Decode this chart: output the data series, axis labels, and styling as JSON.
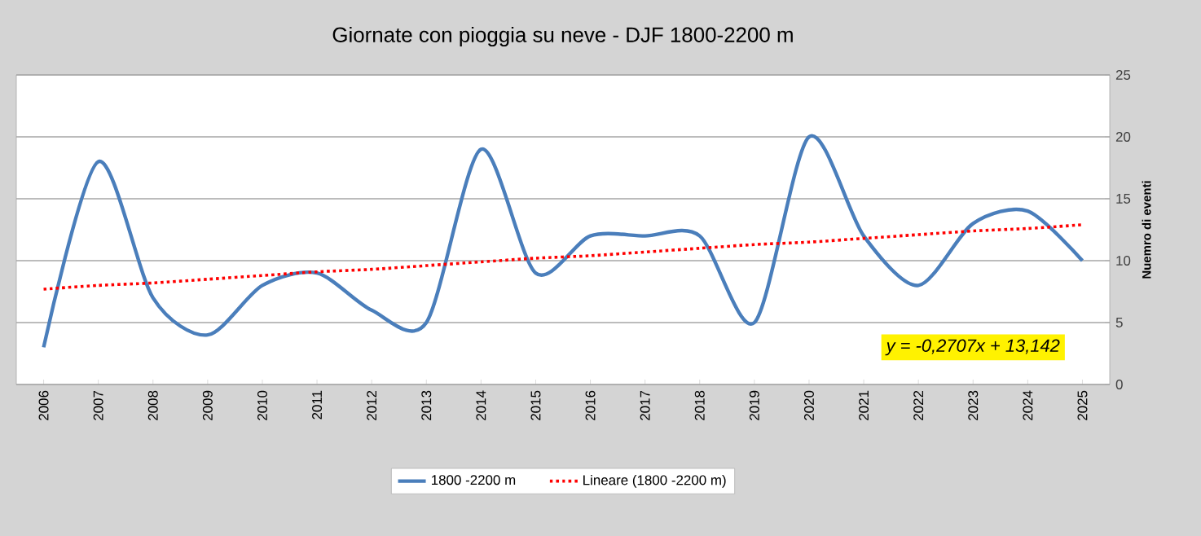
{
  "chart_data": {
    "type": "line",
    "title": "Giornate con pioggia su neve - DJF 1800-2200 m",
    "ylabel": "Nuemro di eventi",
    "categories": [
      "2006",
      "2007",
      "2008",
      "2009",
      "2010",
      "2011",
      "2012",
      "2013",
      "2014",
      "2015",
      "2016",
      "2017",
      "2018",
      "2019",
      "2020",
      "2021",
      "2022",
      "2023",
      "2024",
      "2025"
    ],
    "series": [
      {
        "name": "1800 -2200 m",
        "color": "#4a7ebb",
        "line_style": "solid",
        "values": [
          3,
          18,
          7,
          4,
          8,
          9,
          6,
          5,
          19,
          9,
          12,
          12,
          12,
          5,
          20,
          12,
          8,
          13,
          14,
          10
        ]
      },
      {
        "name": "Lineare (1800 -2200 m)",
        "color": "#ff0000",
        "line_style": "dotted",
        "values": [
          7.7,
          8.0,
          8.2,
          8.5,
          8.8,
          9.1,
          9.3,
          9.6,
          9.9,
          10.2,
          10.4,
          10.7,
          11.0,
          11.3,
          11.5,
          11.8,
          12.1,
          12.4,
          12.6,
          12.9
        ]
      }
    ],
    "ylim": [
      0,
      25
    ],
    "yticks": [
      0,
      5,
      10,
      15,
      20,
      25
    ],
    "grid": "y",
    "legend": "bottom",
    "marker": "none",
    "annotations": [
      "y = -0,2707x + 13,142"
    ]
  }
}
